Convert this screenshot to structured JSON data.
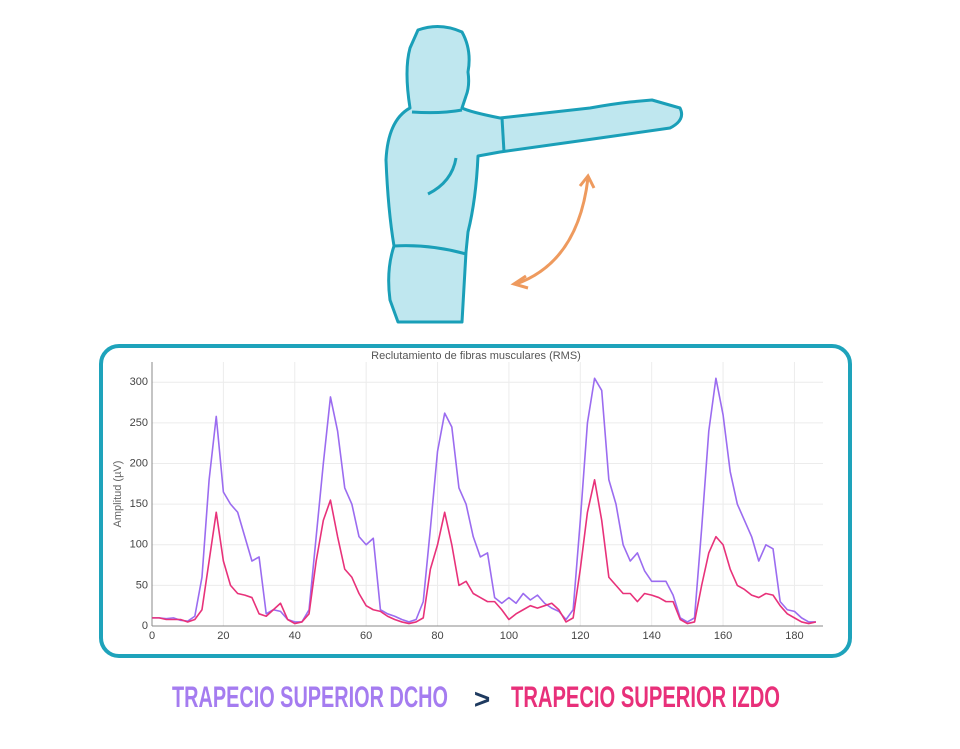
{
  "chart_data": {
    "type": "line",
    "title": "Reclutamiento de fibras musculares (RMS)",
    "y_label": "Amplitud (µV)",
    "comparison": ">",
    "x": [
      0,
      2,
      4,
      6,
      8,
      10,
      12,
      14,
      16,
      18,
      20,
      22,
      24,
      26,
      28,
      30,
      32,
      34,
      36,
      38,
      40,
      42,
      44,
      46,
      48,
      50,
      52,
      54,
      56,
      58,
      60,
      62,
      64,
      66,
      68,
      70,
      72,
      74,
      76,
      78,
      80,
      82,
      84,
      86,
      88,
      90,
      92,
      94,
      96,
      98,
      100,
      102,
      104,
      106,
      108,
      110,
      112,
      114,
      116,
      118,
      120,
      122,
      124,
      126,
      128,
      130,
      132,
      134,
      136,
      138,
      140,
      142,
      144,
      146,
      148,
      150,
      152,
      154,
      156,
      158,
      160,
      162,
      164,
      166,
      168,
      170,
      172,
      174,
      176,
      178,
      180,
      182,
      184,
      186
    ],
    "series": [
      {
        "name": "TRAPECIO SUPERIOR DCHO",
        "color": "#9b6cf0",
        "values": [
          10,
          10,
          9,
          10,
          7,
          6,
          12,
          60,
          180,
          258,
          165,
          150,
          140,
          110,
          80,
          85,
          15,
          20,
          18,
          8,
          5,
          5,
          20,
          110,
          200,
          282,
          240,
          170,
          150,
          110,
          100,
          108,
          20,
          15,
          12,
          8,
          5,
          8,
          30,
          120,
          215,
          262,
          245,
          170,
          150,
          110,
          85,
          90,
          35,
          28,
          35,
          28,
          40,
          32,
          38,
          28,
          22,
          18,
          8,
          20,
          130,
          250,
          305,
          290,
          180,
          150,
          100,
          80,
          90,
          68,
          55,
          55,
          55,
          38,
          10,
          5,
          10,
          120,
          240,
          305,
          260,
          190,
          150,
          130,
          110,
          80,
          100,
          95,
          30,
          20,
          18,
          10,
          5,
          5
        ]
      },
      {
        "name": "TRAPECIO SUPERIOR IZDO",
        "color": "#e8327a",
        "values": [
          10,
          10,
          8,
          8,
          8,
          5,
          8,
          20,
          80,
          140,
          80,
          50,
          40,
          38,
          35,
          15,
          12,
          20,
          28,
          8,
          3,
          5,
          15,
          80,
          130,
          155,
          110,
          70,
          60,
          40,
          25,
          20,
          18,
          12,
          8,
          5,
          3,
          5,
          10,
          70,
          100,
          140,
          100,
          50,
          55,
          40,
          35,
          30,
          30,
          20,
          8,
          15,
          20,
          25,
          22,
          25,
          28,
          20,
          5,
          10,
          70,
          140,
          180,
          130,
          60,
          50,
          40,
          40,
          30,
          40,
          38,
          35,
          30,
          30,
          8,
          3,
          5,
          50,
          90,
          110,
          100,
          70,
          50,
          45,
          38,
          35,
          40,
          38,
          25,
          15,
          10,
          5,
          3,
          5
        ]
      }
    ],
    "xlim": [
      0,
      188
    ],
    "ylim": [
      0,
      325
    ],
    "xticks": [
      0,
      20,
      40,
      60,
      80,
      100,
      120,
      140,
      160,
      180
    ],
    "yticks": [
      0,
      50,
      100,
      150,
      200,
      250,
      300
    ],
    "grid": true
  }
}
